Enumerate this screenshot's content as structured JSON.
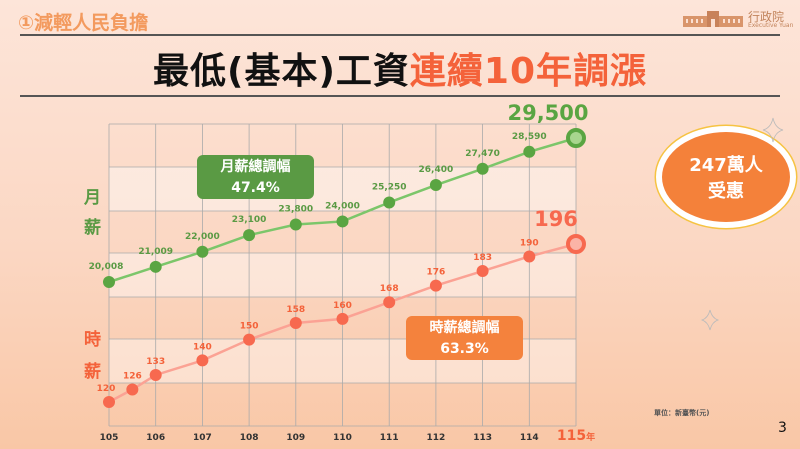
{
  "section_label": "①減輕人民負擔",
  "logo": {
    "name": "行政院",
    "sub": "Executive Yuan"
  },
  "title": {
    "main": "最低(基本)工資",
    "highlight": "連續10年調漲"
  },
  "row_labels": {
    "monthly": [
      "月",
      "薪"
    ],
    "hourly": [
      "時",
      "薪"
    ]
  },
  "monthly_box": {
    "label": "月薪總調幅",
    "value": "47.4%",
    "color": "#5a9a44"
  },
  "hourly_box": {
    "label": "時薪總調幅",
    "value": "63.3%",
    "color": "#f4823d"
  },
  "callout": {
    "line1": "247萬人",
    "line2": "受惠"
  },
  "unit": "單位：新臺幣(元)",
  "page_number": "3",
  "chart_data": {
    "type": "line",
    "categories": [
      "105",
      "106",
      "107",
      "108",
      "109",
      "110",
      "111",
      "112",
      "113",
      "114",
      "115"
    ],
    "last_category_suffix": "年",
    "grid": true,
    "series": [
      {
        "key": "monthly",
        "color": "#7cc66a",
        "marker_color": "#5aa542",
        "x": [
          105,
          106,
          107,
          108,
          109,
          110,
          111,
          112,
          113,
          114,
          115
        ],
        "values": [
          20008,
          21009,
          22000,
          23100,
          23800,
          24000,
          25250,
          26400,
          27470,
          28590,
          29500
        ],
        "labels": [
          "20,008",
          "21,009",
          "22,000",
          "23,100",
          "23,800",
          "24,000",
          "25,250",
          "26,400",
          "27,470",
          "28,590",
          "29,500"
        ]
      },
      {
        "key": "hourly",
        "color": "#fba294",
        "marker_color": "#f7694f",
        "x": [
          105,
          105.5,
          106,
          107,
          108,
          109,
          110,
          111,
          112,
          113,
          114,
          115
        ],
        "values": [
          120,
          126,
          133,
          140,
          150,
          158,
          160,
          168,
          176,
          183,
          190,
          196
        ],
        "labels": [
          "120",
          "126",
          "133",
          "140",
          "150",
          "158",
          "160",
          "168",
          "176",
          "183",
          "190",
          "196"
        ]
      }
    ]
  }
}
